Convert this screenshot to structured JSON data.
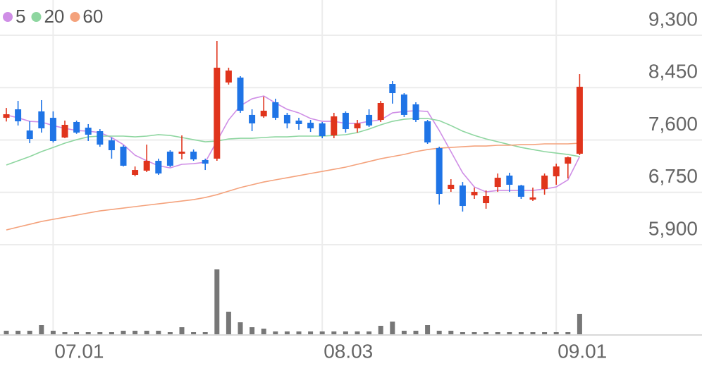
{
  "chart_data": {
    "type": "candlestick",
    "categories": [
      null,
      null,
      null,
      null,
      "07.01",
      null,
      null,
      null,
      null,
      null,
      null,
      null,
      null,
      null,
      null,
      null,
      null,
      null,
      null,
      null,
      null,
      null,
      null,
      null,
      null,
      null,
      null,
      "08.03",
      null,
      null,
      null,
      null,
      null,
      null,
      null,
      null,
      null,
      null,
      null,
      null,
      null,
      null,
      null,
      null,
      null,
      null,
      null,
      "09.01",
      null,
      null
    ],
    "open": [
      7960,
      8098,
      7754,
      8064,
      7960,
      7640,
      7892,
      7800,
      7743,
      7594,
      7491,
      7033,
      7102,
      7262,
      7411,
      7377,
      7411,
      7274,
      7297,
      8533,
      8613,
      8007,
      7983,
      8212,
      8007,
      7915,
      7880,
      7869,
      7674,
      8041,
      7789,
      8007,
      7926,
      8510,
      8338,
      8178,
      7903,
      7468,
      6804,
      6861,
      6701,
      6575,
      6838,
      7022,
      6861,
      6632,
      6804,
      7010,
      7216,
      7377
    ],
    "high": [
      8120,
      8235,
      7903,
      8247,
      8064,
      7915,
      7915,
      7858,
      7777,
      7640,
      7514,
      7170,
      7525,
      7297,
      7434,
      7674,
      7446,
      7297,
      9208,
      8773,
      8636,
      8098,
      8304,
      8270,
      8041,
      7960,
      7926,
      7892,
      8041,
      8064,
      7926,
      8098,
      8235,
      8556,
      8361,
      8212,
      7926,
      7491,
      6964,
      6918,
      6827,
      6781,
      7056,
      7068,
      6873,
      6827,
      7056,
      7216,
      7331,
      8670
    ],
    "low": [
      7900,
      7835,
      7548,
      7720,
      7560,
      7630,
      7700,
      7583,
      7490,
      7297,
      7170,
      7010,
      7079,
      7033,
      7159,
      7285,
      7262,
      7113,
      7262,
      8499,
      8041,
      7743,
      7960,
      7926,
      7789,
      7766,
      7731,
      7629,
      7629,
      7720,
      7720,
      7812,
      7892,
      8190,
      7972,
      7892,
      7537,
      6552,
      6758,
      6438,
      6644,
      6484,
      6758,
      6758,
      6644,
      6610,
      6712,
      6873,
      6976,
      7354
    ],
    "close": [
      8018,
      7903,
      7617,
      7789,
      7583,
      7846,
      7720,
      7686,
      7525,
      7434,
      7182,
      7113,
      7262,
      7056,
      7182,
      7411,
      7285,
      7216,
      8773,
      8727,
      8075,
      7869,
      8075,
      7960,
      7869,
      7858,
      7789,
      7663,
      7983,
      7777,
      7869,
      7835,
      8201,
      8361,
      8007,
      7926,
      7560,
      6724,
      6873,
      6529,
      6758,
      6690,
      6987,
      6873,
      6678,
      6667,
      7022,
      7170,
      7319,
      8464
    ],
    "up_color": "#e0341c",
    "down_color": "#1f74e6",
    "series": [
      {
        "name": "5",
        "color": "#cf8ee6",
        "values": [
          8006,
          7960,
          7903,
          7892,
          7834,
          7789,
          7754,
          7743,
          7720,
          7640,
          7525,
          7353,
          7262,
          7182,
          7147,
          7205,
          7216,
          7239,
          7582,
          7926,
          8155,
          8269,
          8315,
          8201,
          8098,
          8040,
          7949,
          7903,
          7903,
          7869,
          7869,
          7903,
          7926,
          8040,
          8063,
          8075,
          8063,
          7754,
          7411,
          7067,
          6838,
          6758,
          6781,
          6781,
          6781,
          6781,
          6804,
          6838,
          6953,
          7331
        ]
      },
      {
        "name": "20",
        "color": "#8ed6a0",
        "values": [
          7193,
          7262,
          7331,
          7411,
          7479,
          7548,
          7605,
          7651,
          7663,
          7663,
          7663,
          7651,
          7663,
          7686,
          7674,
          7640,
          7605,
          7571,
          7582,
          7617,
          7628,
          7628,
          7640,
          7651,
          7651,
          7663,
          7663,
          7663,
          7674,
          7686,
          7720,
          7777,
          7846,
          7903,
          7937,
          7949,
          7949,
          7915,
          7834,
          7743,
          7674,
          7617,
          7571,
          7525,
          7479,
          7445,
          7411,
          7388,
          7365,
          7331
        ]
      },
      {
        "name": "60",
        "color": "#f4a27c",
        "values": [
          6140,
          6186,
          6231,
          6277,
          6312,
          6346,
          6380,
          6415,
          6449,
          6472,
          6495,
          6518,
          6541,
          6563,
          6586,
          6609,
          6632,
          6666,
          6712,
          6770,
          6827,
          6873,
          6918,
          6953,
          6987,
          7021,
          7056,
          7090,
          7124,
          7159,
          7205,
          7250,
          7296,
          7331,
          7365,
          7411,
          7445,
          7468,
          7479,
          7491,
          7502,
          7502,
          7514,
          7514,
          7525,
          7525,
          7537,
          7537,
          7537,
          7548
        ]
      }
    ],
    "volume": [
      5,
      5,
      5,
      13,
      5,
      3,
      3,
      3,
      3,
      3,
      5,
      5,
      5,
      5,
      3,
      10,
      3,
      3,
      92,
      32,
      17,
      10,
      8,
      4,
      4,
      4,
      4,
      4,
      4,
      4,
      4,
      4,
      12,
      18,
      5,
      5,
      13,
      5,
      5,
      3,
      3,
      3,
      3,
      3,
      3,
      3,
      3,
      3,
      3,
      29
    ],
    "volume_color": "#777777",
    "ylim": [
      5900,
      9300
    ],
    "yticks": [
      {
        "value": 9300,
        "label": "9,300"
      },
      {
        "value": 8450,
        "label": "8,450"
      },
      {
        "value": 7600,
        "label": "7,600"
      },
      {
        "value": 6750,
        "label": "6,750"
      },
      {
        "value": 5900,
        "label": "5,900"
      }
    ],
    "grid": true
  }
}
